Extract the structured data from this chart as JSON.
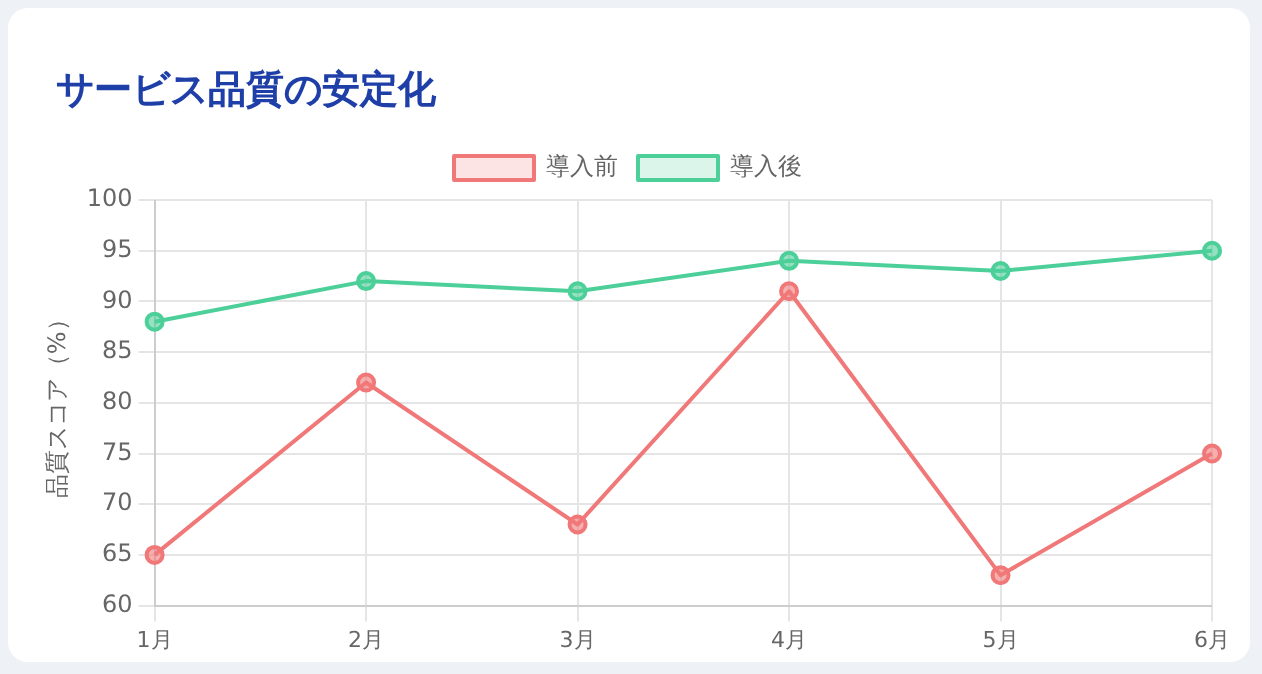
{
  "chart_data": {
    "type": "line",
    "title": "サービス品質の安定化",
    "ylabel": "品質スコア（%）",
    "categories": [
      "1月",
      "2月",
      "3月",
      "4月",
      "5月",
      "6月"
    ],
    "series": [
      {
        "name": "導入前",
        "color": "#f07878",
        "values": [
          65,
          82,
          68,
          91,
          63,
          75
        ]
      },
      {
        "name": "導入後",
        "color": "#4ccf98",
        "values": [
          88,
          92,
          91,
          94,
          93,
          95
        ]
      }
    ],
    "ylim": [
      60,
      100
    ],
    "yticks": [
      60,
      65,
      70,
      75,
      80,
      85,
      90,
      95,
      100
    ],
    "grid": true,
    "legend": "top",
    "marker": "circle",
    "line_style": "solid"
  }
}
